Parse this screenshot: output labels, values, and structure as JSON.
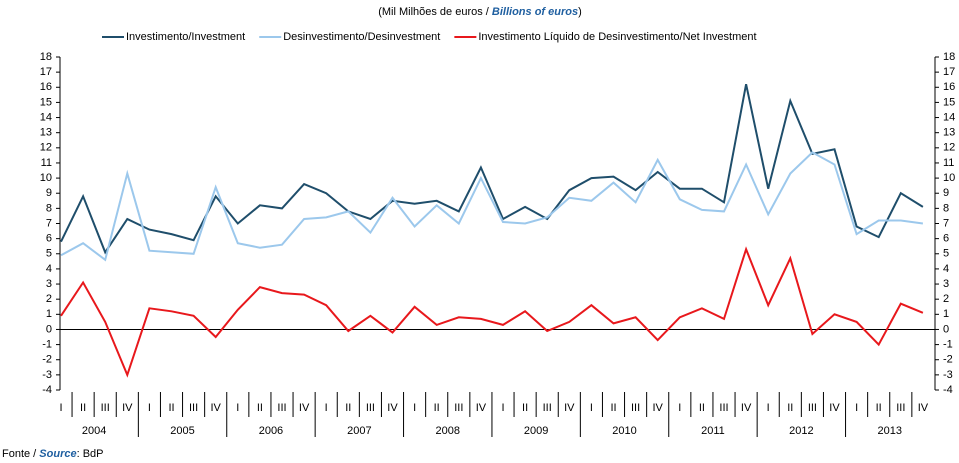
{
  "chart_data": {
    "type": "line",
    "subtitle_parts": [
      "(Mil Milhões de euros / ",
      "Billions of euros",
      ")"
    ],
    "source_parts": [
      "Fonte / ",
      "Source",
      ": BdP"
    ],
    "categories": [
      "I",
      "II",
      "III",
      "IV",
      "I",
      "II",
      "III",
      "IV",
      "I",
      "II",
      "III",
      "IV",
      "I",
      "II",
      "III",
      "IV",
      "I",
      "II",
      "III",
      "IV",
      "I",
      "II",
      "III",
      "IV",
      "I",
      "II",
      "III",
      "IV",
      "I",
      "II",
      "III",
      "IV",
      "I",
      "II",
      "III",
      "IV",
      "I",
      "II",
      "III",
      "IV"
    ],
    "years": [
      2004,
      2005,
      2006,
      2007,
      2008,
      2009,
      2010,
      2011,
      2012,
      2013
    ],
    "series": [
      {
        "name": "Investimento/Investment",
        "color": "#1f4e6b",
        "values": [
          5.8,
          8.8,
          5.1,
          7.3,
          6.6,
          6.3,
          5.9,
          8.8,
          7.0,
          8.2,
          8.0,
          9.6,
          9.0,
          7.8,
          7.3,
          8.5,
          8.3,
          8.5,
          7.8,
          10.7,
          7.3,
          8.1,
          7.3,
          9.2,
          10.0,
          10.1,
          9.2,
          10.4,
          9.3,
          9.3,
          8.4,
          16.2,
          9.3,
          15.1,
          11.6,
          11.9,
          6.8,
          6.1,
          9.0,
          8.1
        ]
      },
      {
        "name": "Desinvestimento/Desinvestment",
        "color": "#9cc8ec",
        "values": [
          4.9,
          5.7,
          4.6,
          10.3,
          5.2,
          5.1,
          5.0,
          9.4,
          5.7,
          5.4,
          5.6,
          7.3,
          7.4,
          7.8,
          6.4,
          8.7,
          6.8,
          8.2,
          7.0,
          10.0,
          7.1,
          7.0,
          7.4,
          8.7,
          8.5,
          9.7,
          8.4,
          11.2,
          8.6,
          7.9,
          7.8,
          10.9,
          7.6,
          10.3,
          11.7,
          10.9,
          6.3,
          7.2,
          7.2,
          7.0
        ]
      },
      {
        "name": "Investimento Líquido de Desinvestimento/Net Investment",
        "color": "#e8181c",
        "values": [
          0.9,
          3.1,
          0.5,
          -3.0,
          1.4,
          1.2,
          0.9,
          -0.5,
          1.3,
          2.8,
          2.4,
          2.3,
          1.6,
          -0.1,
          0.9,
          -0.2,
          1.5,
          0.3,
          0.8,
          0.7,
          0.3,
          1.2,
          -0.1,
          0.5,
          1.6,
          0.4,
          0.8,
          -0.7,
          0.8,
          1.4,
          0.7,
          5.3,
          1.6,
          4.7,
          -0.3,
          1.0,
          0.5,
          -1.0,
          1.7,
          1.1
        ]
      }
    ],
    "ylim": [
      -4,
      18
    ],
    "yticks": [
      -4,
      -3,
      -2,
      -1,
      0,
      1,
      2,
      3,
      4,
      5,
      6,
      7,
      8,
      9,
      10,
      11,
      12,
      13,
      14,
      15,
      16,
      17,
      18
    ],
    "y2lim": [
      -4,
      18
    ],
    "y2ticks": [
      -4,
      -3,
      -2,
      -1,
      0,
      1,
      2,
      3,
      4,
      5,
      6,
      7,
      8,
      9,
      10,
      11,
      12,
      13,
      14,
      15,
      16,
      17,
      18
    ]
  }
}
